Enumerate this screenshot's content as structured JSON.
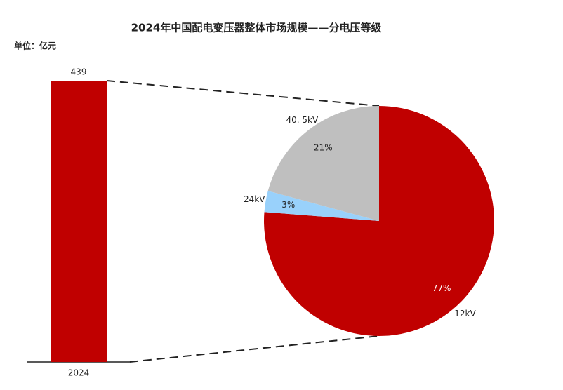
{
  "chart_data": [
    {
      "type": "bar",
      "title": "2024年中国配电变压器整体市场规模——分电压等级",
      "subtitle": "单位：亿元",
      "categories": [
        "2024"
      ],
      "values": [
        439
      ],
      "color": "#c00000"
    },
    {
      "type": "pie",
      "categories": [
        "12kV",
        "24kV",
        "40. 5kV"
      ],
      "values": [
        77,
        3,
        21
      ],
      "value_labels": [
        "77%",
        "3%",
        "21%"
      ],
      "colors": [
        "#c00000",
        "#99d1fb",
        "#bfbfbf"
      ]
    }
  ]
}
